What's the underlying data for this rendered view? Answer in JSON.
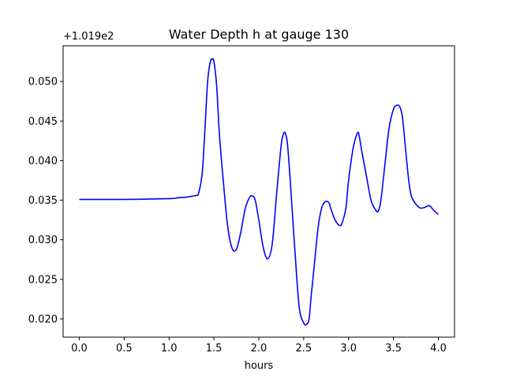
{
  "chart_data": {
    "type": "line",
    "title": "Water Depth h at gauge 130",
    "xlabel": "hours",
    "ylabel": "",
    "y_offset_label": "+1.019e2",
    "xlim": [
      -0.18,
      4.18
    ],
    "ylim": [
      0.0177,
      0.0545
    ],
    "x_ticks": [
      0.0,
      0.5,
      1.0,
      1.5,
      2.0,
      2.5,
      3.0,
      3.5,
      4.0
    ],
    "x_tick_labels": [
      "0.0",
      "0.5",
      "1.0",
      "1.5",
      "2.0",
      "2.5",
      "3.0",
      "3.5",
      "4.0"
    ],
    "y_ticks": [
      0.02,
      0.025,
      0.03,
      0.035,
      0.04,
      0.045,
      0.05
    ],
    "y_tick_labels": [
      "0.020",
      "0.025",
      "0.030",
      "0.035",
      "0.040",
      "0.045",
      "0.050"
    ],
    "grid": false,
    "series": [
      {
        "color": "#0000ff",
        "x": [
          0.0,
          0.5,
          1.0,
          1.1,
          1.2,
          1.3,
          1.33,
          1.37,
          1.4,
          1.43,
          1.46,
          1.48,
          1.5,
          1.53,
          1.56,
          1.6,
          1.65,
          1.7,
          1.75,
          1.8,
          1.85,
          1.9,
          1.93,
          1.96,
          2.0,
          2.05,
          2.1,
          2.15,
          2.2,
          2.25,
          2.28,
          2.3,
          2.32,
          2.35,
          2.4,
          2.45,
          2.5,
          2.53,
          2.56,
          2.58,
          2.62,
          2.66,
          2.7,
          2.74,
          2.78,
          2.8,
          2.85,
          2.9,
          2.93,
          2.97,
          3.0,
          3.05,
          3.1,
          3.12,
          3.15,
          3.2,
          3.25,
          3.3,
          3.33,
          3.36,
          3.4,
          3.45,
          3.5,
          3.54,
          3.57,
          3.6,
          3.63,
          3.67,
          3.7,
          3.75,
          3.8,
          3.85,
          3.9,
          3.95,
          4.0
        ],
        "y": [
          0.0351,
          0.0351,
          0.0352,
          0.0353,
          0.0354,
          0.0356,
          0.0359,
          0.0385,
          0.044,
          0.05,
          0.0525,
          0.0528,
          0.0525,
          0.0495,
          0.0435,
          0.038,
          0.032,
          0.029,
          0.0288,
          0.031,
          0.034,
          0.0354,
          0.0355,
          0.035,
          0.0325,
          0.029,
          0.0276,
          0.0295,
          0.036,
          0.042,
          0.0435,
          0.0433,
          0.042,
          0.0375,
          0.029,
          0.0215,
          0.0195,
          0.0193,
          0.02,
          0.0225,
          0.027,
          0.0315,
          0.034,
          0.0348,
          0.0347,
          0.034,
          0.0325,
          0.0318,
          0.0322,
          0.034,
          0.0375,
          0.0415,
          0.0435,
          0.043,
          0.041,
          0.038,
          0.035,
          0.0338,
          0.0336,
          0.035,
          0.039,
          0.044,
          0.0465,
          0.047,
          0.0468,
          0.0455,
          0.042,
          0.0375,
          0.0355,
          0.0345,
          0.034,
          0.0341,
          0.0343,
          0.0337,
          0.0332
        ]
      }
    ]
  }
}
